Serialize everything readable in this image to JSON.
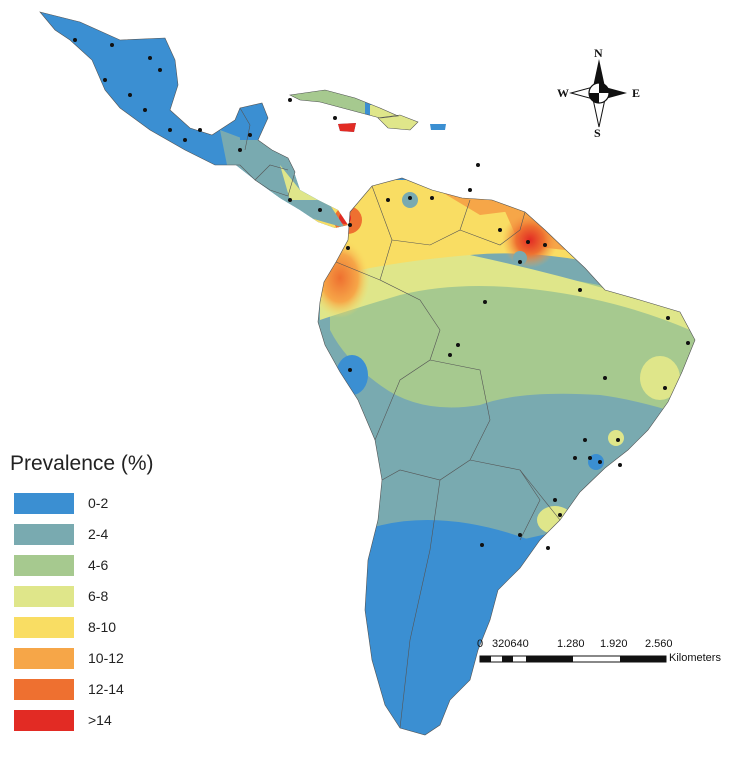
{
  "legend": {
    "title": "Prevalence (%)",
    "items": [
      {
        "label": "0-2",
        "color": "#3b8fd2"
      },
      {
        "label": "2-4",
        "color": "#79aab0"
      },
      {
        "label": "4-6",
        "color": "#a6c98f"
      },
      {
        "label": "6-8",
        "color": "#dfe68a"
      },
      {
        "label": "8-10",
        "color": "#f9dd63"
      },
      {
        "label": "10-12",
        "color": "#f6a648"
      },
      {
        "label": "12-14",
        "color": "#ee7030"
      },
      {
        "label": ">14",
        "color": "#e22b24"
      }
    ]
  },
  "compass": {
    "n": "N",
    "s": "S",
    "e": "E",
    "w": "W"
  },
  "scale_bar": {
    "ticks": [
      "0",
      "320640",
      "1.280",
      "1.920",
      "2.560"
    ],
    "unit": "Kilometers"
  },
  "map": {
    "region": "Latin America",
    "variable": "prevalence"
  }
}
